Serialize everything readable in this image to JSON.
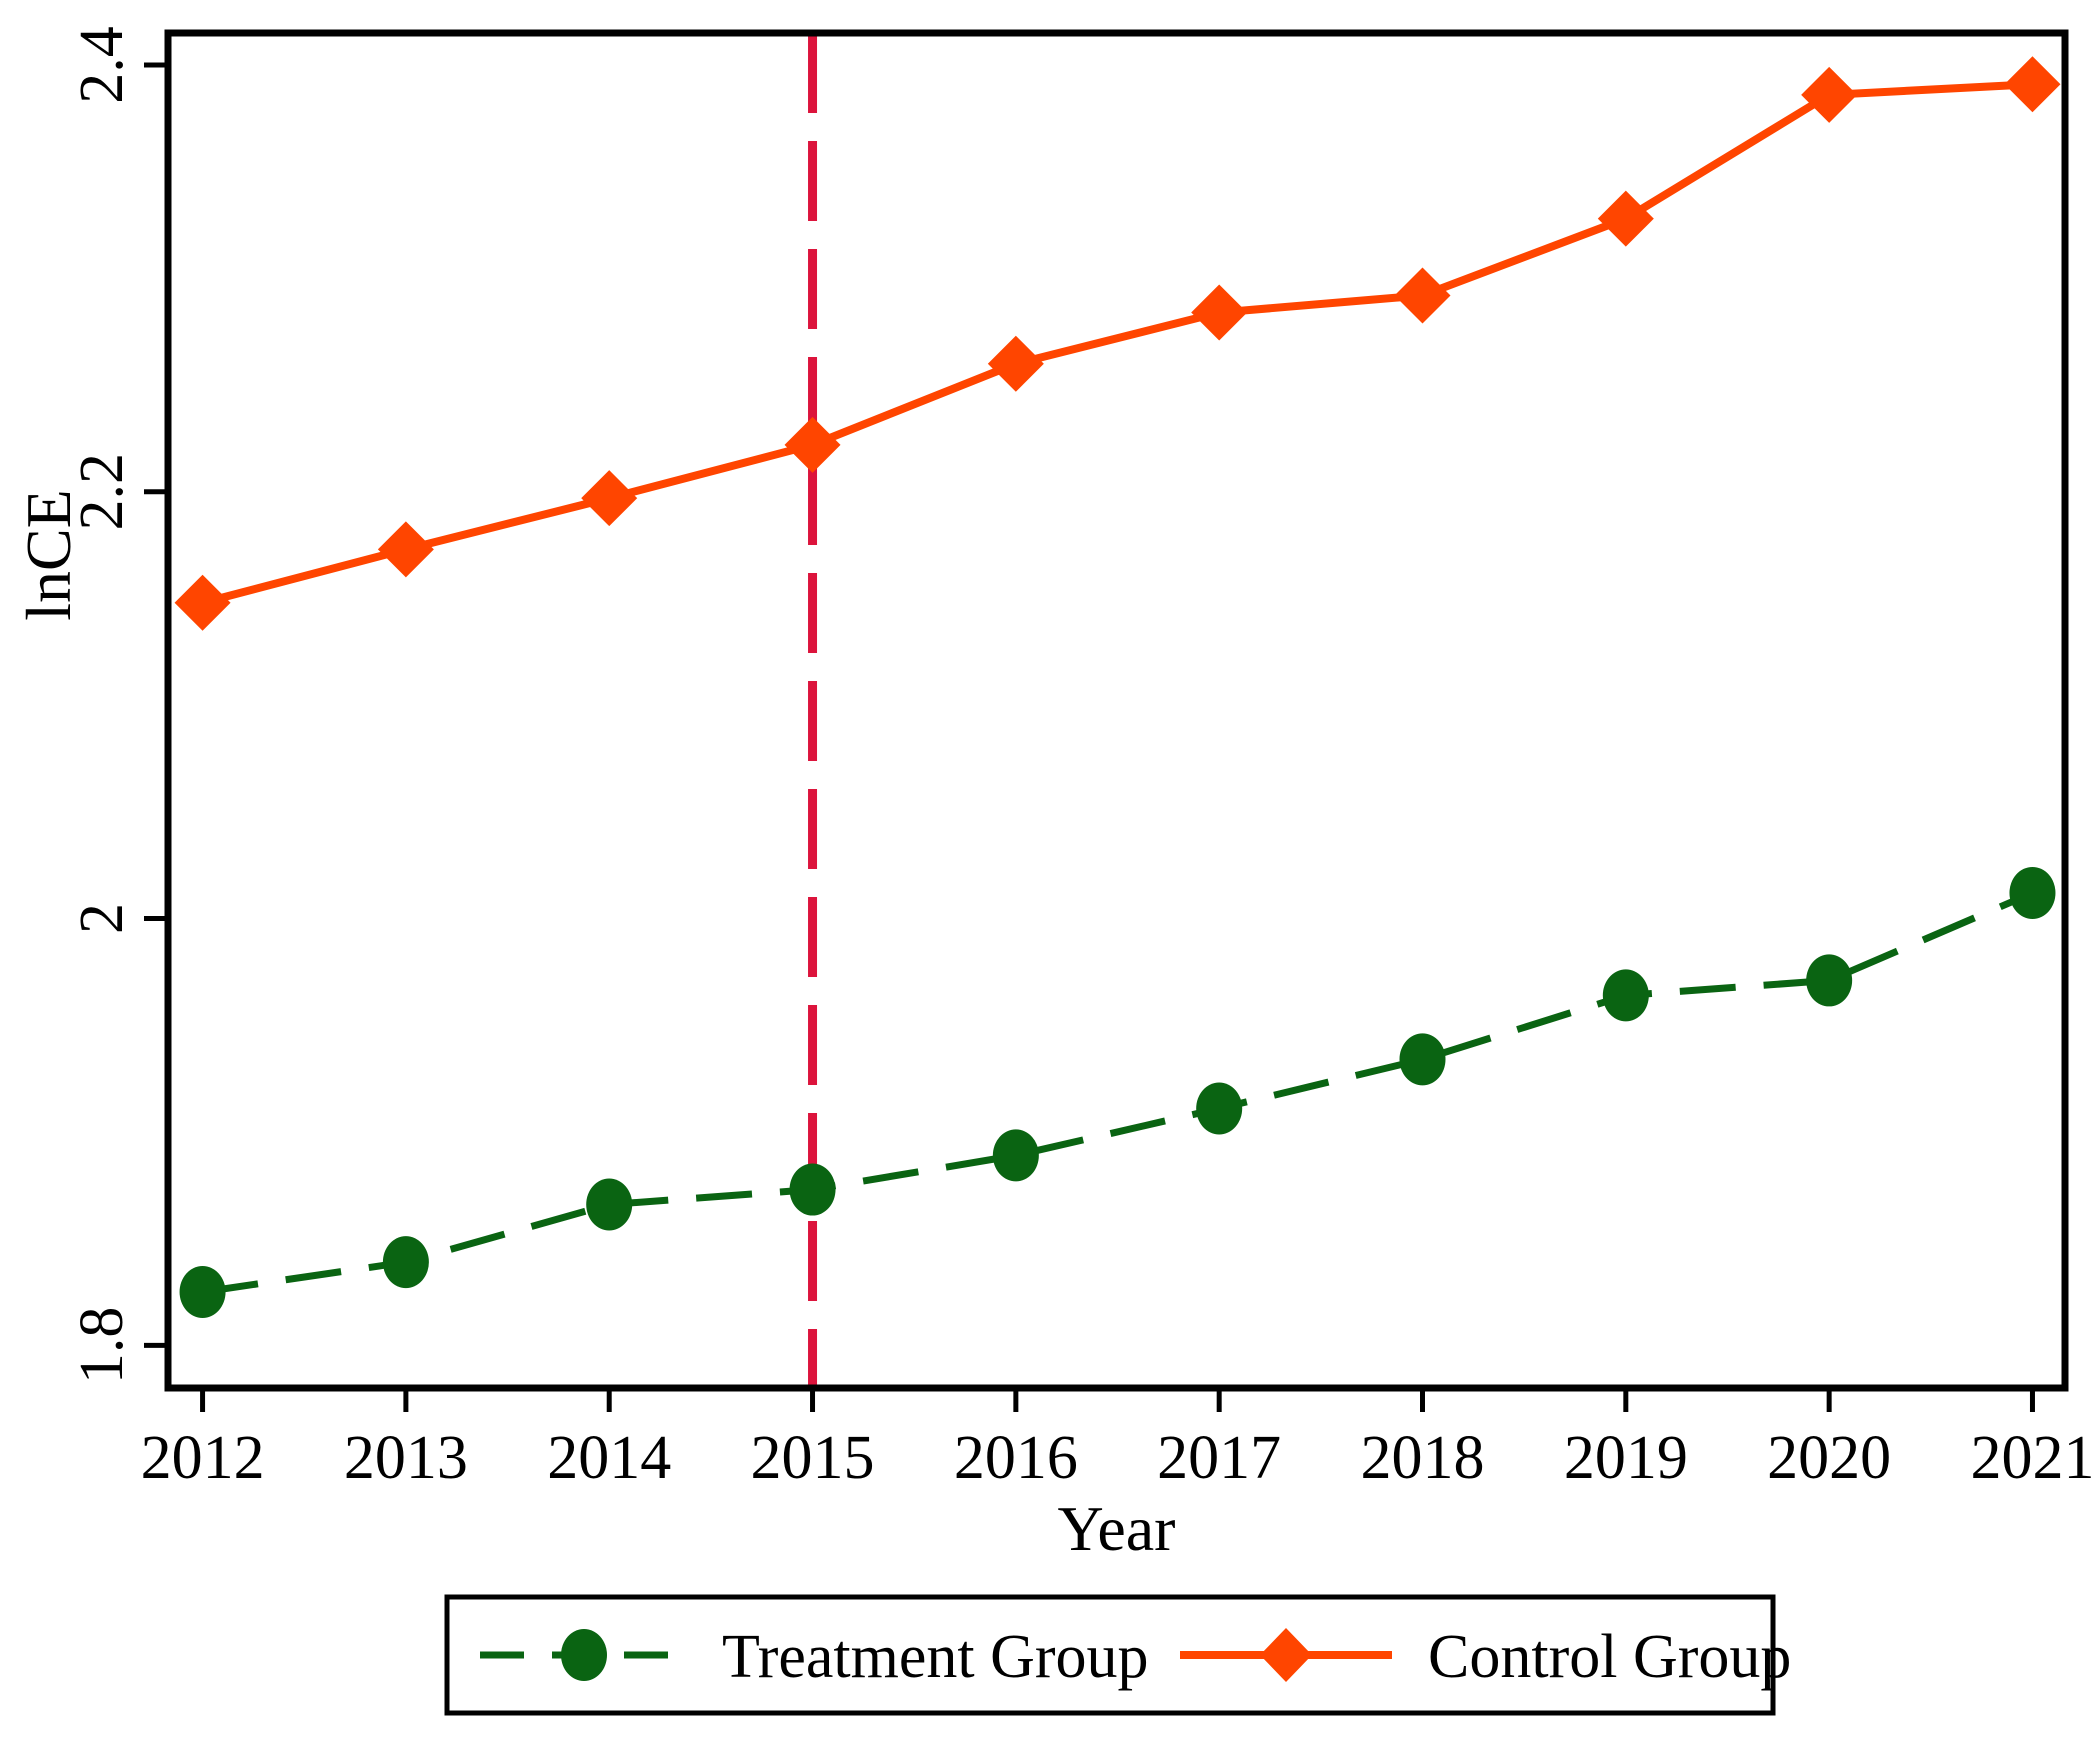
{
  "chart_data": {
    "type": "line",
    "title": "",
    "xlabel": "Year",
    "ylabel": "lnCE",
    "x": [
      2012,
      2013,
      2014,
      2015,
      2016,
      2017,
      2018,
      2019,
      2020,
      2021
    ],
    "series": [
      {
        "name": "Treatment Group",
        "color": "#0A6412",
        "line_style": "dashed",
        "marker": "circle",
        "values": [
          1.825,
          1.839,
          1.866,
          1.873,
          1.889,
          1.911,
          1.934,
          1.964,
          1.971,
          2.012
        ]
      },
      {
        "name": "Control Group",
        "color": "#FF4500",
        "line_style": "solid",
        "marker": "diamond",
        "values": [
          2.148,
          2.173,
          2.197,
          2.222,
          2.26,
          2.284,
          2.292,
          2.328,
          2.386,
          2.391
        ]
      }
    ],
    "reference_line": {
      "axis": "x",
      "value": 2015,
      "color": "#DC143C",
      "style": "dashed"
    },
    "x_tick_labels": [
      "2012",
      "2013",
      "2014",
      "2015",
      "2016",
      "2017",
      "2018",
      "2019",
      "2020",
      "2021"
    ],
    "y_ticks": [
      1.8,
      2.0,
      2.2,
      2.4
    ],
    "y_tick_labels": [
      "1.8",
      "2",
      "2.2",
      "2.4"
    ],
    "xlim": [
      2011.83,
      2021.16
    ],
    "ylim": [
      1.78,
      2.415
    ],
    "grid": false,
    "legend_position": "bottom",
    "axis_color": "#000000",
    "background": "#FFFFFF"
  }
}
